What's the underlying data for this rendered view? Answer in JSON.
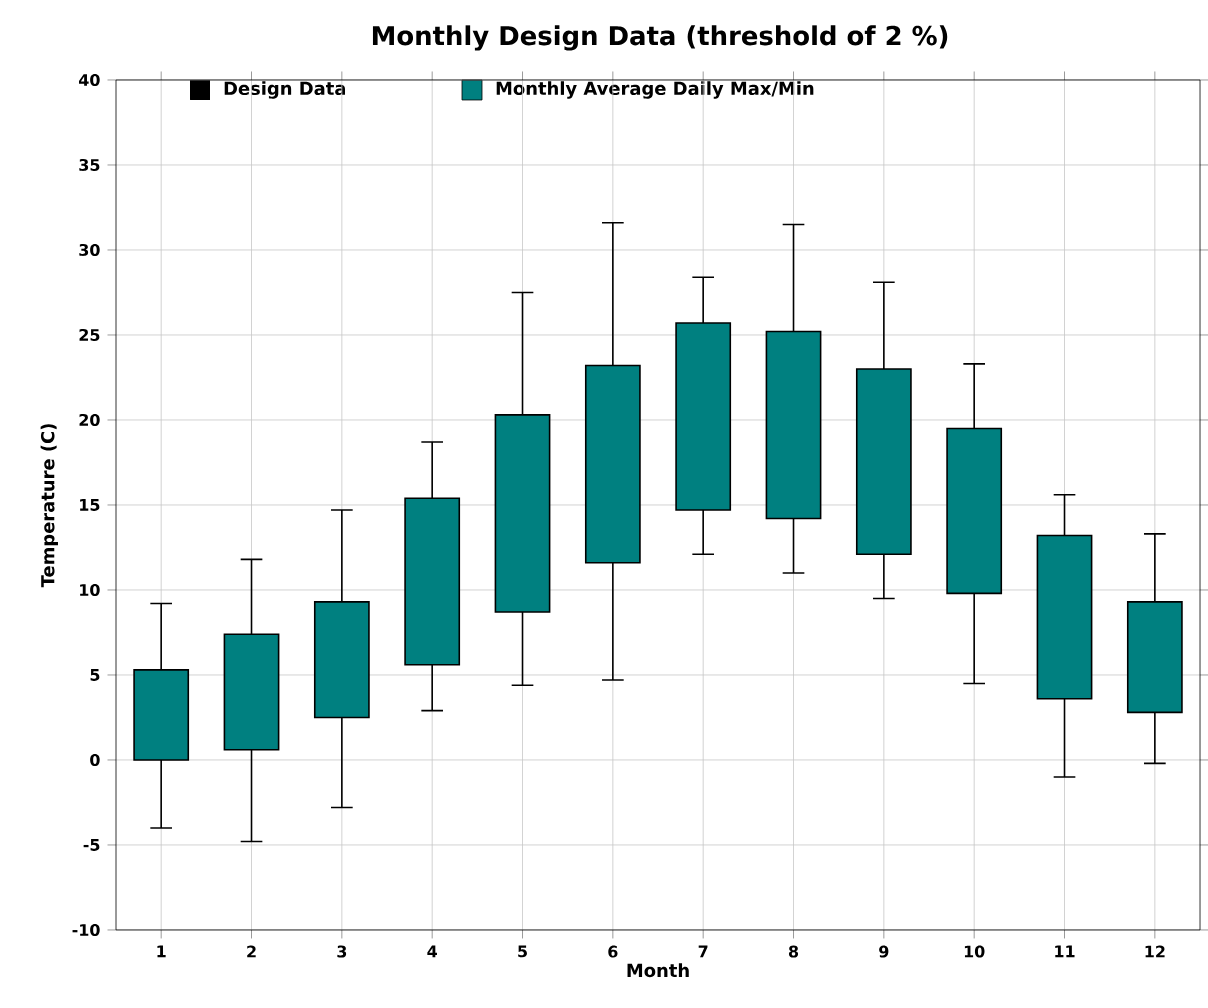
{
  "chart_data": {
    "type": "bar",
    "title": "Monthly Design Data (threshold of 2 %)",
    "xlabel": "Month",
    "ylabel": "Temperature (C)",
    "categories": [
      "1",
      "2",
      "3",
      "4",
      "5",
      "6",
      "7",
      "8",
      "9",
      "10",
      "11",
      "12"
    ],
    "annotations": [
      "Design Data"
    ],
    "series": [
      {
        "name": "Monthly Average Daily Max/Min",
        "color": "#008080",
        "base": [
          0,
          0.6,
          2.5,
          5.6,
          8.7,
          11.6,
          14.7,
          14.2,
          12.1,
          9.8,
          3.6,
          2.8
        ],
        "values": [
          5.3,
          6.8,
          6.8,
          9.8,
          11.6,
          11.6,
          11.0,
          11.0,
          10.9,
          9.7,
          9.6,
          6.5
        ],
        "errors": [
          [
            -4,
            9.2
          ],
          [
            -4.8,
            11.8
          ],
          [
            -2.8,
            14.7
          ],
          [
            2.9,
            18.7
          ],
          [
            4.4,
            27.5
          ],
          [
            4.7,
            31.6
          ],
          [
            12.1,
            28.4
          ],
          [
            11.0,
            31.5
          ],
          [
            9.5,
            28.1
          ],
          [
            4.5,
            23.3
          ],
          [
            -1,
            15.6
          ],
          [
            -0.2,
            13.3
          ]
        ]
      }
    ],
    "ylim": [
      -10,
      40
    ],
    "yticks": [
      -10,
      -5,
      0,
      5,
      10,
      15,
      20,
      25,
      30,
      35,
      40
    ],
    "grid": true,
    "legend": "top"
  }
}
